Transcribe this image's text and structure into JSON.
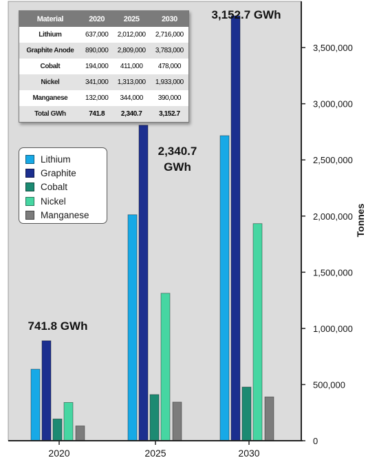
{
  "colors": {
    "Lithium": "#17a9e6",
    "Graphite": "#1c2f8f",
    "Cobalt": "#1c8a72",
    "Nickel": "#46d6a2",
    "Manganese": "#7c7c7c",
    "plot_background": "#dcdcdc"
  },
  "table": {
    "headers": [
      "Material",
      "2020",
      "2025",
      "2030"
    ],
    "rows": [
      {
        "material": "Lithium",
        "v2020": "637,000",
        "v2025": "2,012,000",
        "v2030": "2,716,000"
      },
      {
        "material": "Graphite Anode",
        "v2020": "890,000",
        "v2025": "2,809,000",
        "v2030": "3,783,000"
      },
      {
        "material": "Cobalt",
        "v2020": "194,000",
        "v2025": "411,000",
        "v2030": "478,000"
      },
      {
        "material": "Nickel",
        "v2020": "341,000",
        "v2025": "1,313,000",
        "v2030": "1,933,000"
      },
      {
        "material": "Manganese",
        "v2020": "132,000",
        "v2025": "344,000",
        "v2030": "390,000"
      },
      {
        "material": "Total GWh",
        "v2020": "741.8",
        "v2025": "2,340.7",
        "v2030": "3,152.7"
      }
    ]
  },
  "legend": {
    "items": [
      {
        "label": "Lithium",
        "color": "#17a9e6"
      },
      {
        "label": "Graphite",
        "color": "#1c2f8f"
      },
      {
        "label": "Cobalt",
        "color": "#1c8a72"
      },
      {
        "label": "Nickel",
        "color": "#46d6a2"
      },
      {
        "label": "Manganese",
        "color": "#7c7c7c"
      }
    ]
  },
  "chart_data": {
    "type": "bar",
    "categories": [
      "2020",
      "2025",
      "2030"
    ],
    "series": [
      {
        "name": "Lithium",
        "values": [
          637000,
          2012000,
          2716000
        ]
      },
      {
        "name": "Graphite",
        "values": [
          890000,
          2809000,
          3783000
        ]
      },
      {
        "name": "Cobalt",
        "values": [
          194000,
          411000,
          478000
        ]
      },
      {
        "name": "Nickel",
        "values": [
          341000,
          1313000,
          1933000
        ]
      },
      {
        "name": "Manganese",
        "values": [
          132000,
          344000,
          390000
        ]
      }
    ],
    "annotations": [
      "741.8 GWh",
      "2,340.7",
      "GWh",
      "3,152.7 GWh"
    ],
    "ylabel": "Tonnes",
    "ylim": [
      0,
      3850000
    ],
    "yaxis_position": "right",
    "yticks": [
      0,
      500000,
      1000000,
      1500000,
      2000000,
      2500000,
      3000000,
      3500000
    ],
    "ytick_labels": [
      "0",
      "500,000",
      "1,000,000",
      "1,500,000",
      "2,000,000",
      "2,500,000",
      "3,000,000",
      "3,500,000"
    ],
    "grid": false,
    "legend_position": "left"
  }
}
